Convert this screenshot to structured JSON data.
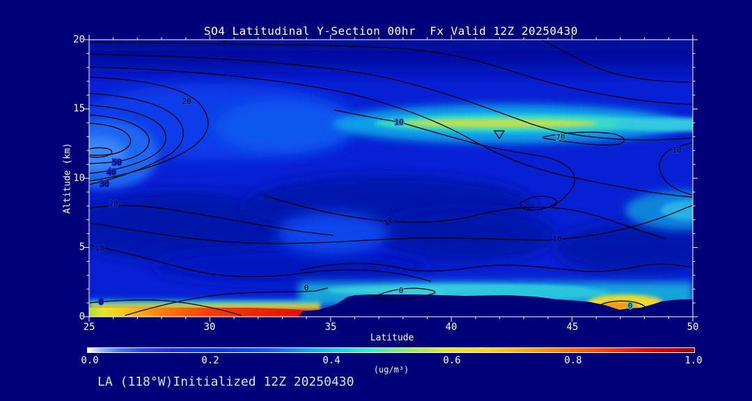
{
  "figure": {
    "title": "SO4 Latitudinal Y-Section 00hr  Fx Valid 12Z 20250430",
    "footer": "LA (118°W)Initialized 12Z 20250430",
    "background_color": "#000078",
    "text_color": "#ffffff",
    "footer_color": "#c8ecec",
    "contour_line_color": "#000000"
  },
  "axes": {
    "y": {
      "label": "Altitude (km)",
      "range": [
        0,
        20
      ],
      "ticks": [
        "20",
        "15",
        "10",
        "5",
        "0"
      ]
    },
    "x": {
      "label": "Latitude",
      "range": [
        25,
        50
      ],
      "ticks": [
        "25",
        "30",
        "35",
        "40",
        "45",
        "50"
      ]
    }
  },
  "colorbar": {
    "units": "(ug/m³)",
    "range": [
      0.0,
      1.0
    ],
    "ticks": [
      "0.0",
      "0.2",
      "0.4",
      "0.6",
      "0.8",
      "1.0"
    ],
    "gradient_stops": [
      "#ffffff",
      "#2c46e2",
      "#0c36e8",
      "#18a2f0",
      "#22d2e8",
      "#96e86c",
      "#dce836",
      "#f8d420",
      "#f87408",
      "#e61404",
      "#9c0000"
    ]
  },
  "plot": {
    "marker": {
      "shape": "down-triangle",
      "lat": 42.0,
      "alt_km": 13.0
    },
    "contour_labels": [
      {
        "text": "0",
        "lat": 30.6,
        "alt_km": 20.0
      },
      {
        "text": "20",
        "lat": 29.0,
        "alt_km": 15.7
      },
      {
        "text": "50",
        "lat": 26.2,
        "alt_km": 11.2
      },
      {
        "text": "40",
        "lat": 25.9,
        "alt_km": 10.5
      },
      {
        "text": "30",
        "lat": 25.6,
        "alt_km": 9.6
      },
      {
        "text": "20",
        "lat": 26.0,
        "alt_km": 8.2
      },
      {
        "text": "10",
        "lat": 25.4,
        "alt_km": 5.0
      },
      {
        "text": "10",
        "lat": 37.8,
        "alt_km": 14.1
      },
      {
        "text": "70",
        "lat": 44.5,
        "alt_km": 13.0
      },
      {
        "text": "10",
        "lat": 49.3,
        "alt_km": 12.1
      },
      {
        "text": "10",
        "lat": 37.4,
        "alt_km": 6.9
      },
      {
        "text": "10",
        "lat": 44.4,
        "alt_km": 5.6
      },
      {
        "text": "0",
        "lat": 25.5,
        "alt_km": 1.1
      },
      {
        "text": "0",
        "lat": 34.0,
        "alt_km": 2.1
      },
      {
        "text": "0",
        "lat": 37.9,
        "alt_km": 1.9
      },
      {
        "text": "0",
        "lat": 47.4,
        "alt_km": 0.8
      }
    ]
  },
  "chart_data": {
    "type": "heatmap",
    "title": "SO4 Latitudinal Y-Section 00hr  Fx Valid 12Z 20250430",
    "xlabel": "Latitude",
    "ylabel": "Altitude (km)",
    "xlim": [
      25,
      50
    ],
    "ylim": [
      0,
      20
    ],
    "fill_variable": "SO4 concentration",
    "fill_units": "ug/m3",
    "fill_range": [
      0.0,
      1.0
    ],
    "line_contour_levels_labeled": [
      0,
      10,
      20,
      30,
      40,
      50,
      70
    ],
    "features": [
      {
        "name": "surface-plume-max",
        "lat": [
          25,
          33.5
        ],
        "alt_km": [
          0,
          0.4
        ],
        "value": "0.8-1.0 (red band)"
      },
      {
        "name": "elevated-plume",
        "lat": [
          38,
          50
        ],
        "alt_km": [
          13.5,
          14.5
        ],
        "value": "0.4-0.6 (cyan/yellow-green streak)"
      },
      {
        "name": "low-level-max-north",
        "lat": [
          46,
          48.5
        ],
        "alt_km": [
          0.3,
          1.2
        ],
        "value": "0.5-0.7 (yellow/orange spot)"
      },
      {
        "name": "boundary-layer-cyan-band",
        "lat": [
          34,
          50
        ],
        "alt_km": [
          1.2,
          2.2
        ],
        "value": "0.2-0.35"
      },
      {
        "name": "mid-level-enhancement-north",
        "lat": [
          48,
          50
        ],
        "alt_km": [
          7,
          9
        ],
        "value": "~0.3"
      },
      {
        "name": "upper-left-enhancement",
        "lat": [
          25,
          35
        ],
        "alt_km": [
          11,
          15
        ],
        "value": "0.15-0.3 with nested line contours 20-70"
      },
      {
        "name": "terrain-mask",
        "lat": [
          34,
          50
        ],
        "alt_km": [
          0,
          1.6
        ],
        "value": "below-surface (background navy)"
      }
    ],
    "legend_position": "bottom colorbar",
    "grid": false
  }
}
